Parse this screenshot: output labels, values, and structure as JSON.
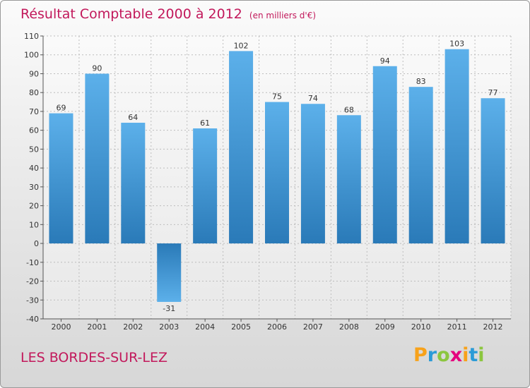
{
  "title": "Résultat Comptable 2000 à 2012",
  "unit_note": "(en milliers d'€)",
  "commune": "LES BORDES-SUR-LEZ",
  "logo": {
    "letters": [
      "P",
      "r",
      "o",
      "x",
      "i",
      "t",
      "i"
    ],
    "colors": [
      "#f7a21b",
      "#2b9bd7",
      "#8cc63f",
      "#e5007e",
      "#f7a21b",
      "#2b9bd7",
      "#8cc63f"
    ]
  },
  "colors": {
    "title": "#c2185b",
    "bar_top": "#5cb0ea",
    "bar_bottom": "#2a7ab8"
  },
  "chart_data": {
    "type": "bar",
    "title": "Résultat Comptable 2000 à 2012",
    "subtitle": "(en milliers d'€)",
    "categories": [
      "2000",
      "2001",
      "2002",
      "2003",
      "2004",
      "2005",
      "2006",
      "2007",
      "2008",
      "2009",
      "2010",
      "2011",
      "2012"
    ],
    "values": [
      69,
      90,
      64,
      -31,
      61,
      102,
      75,
      74,
      68,
      94,
      83,
      103,
      77
    ],
    "ylim": [
      -40,
      110
    ],
    "yticks": [
      110,
      100,
      90,
      80,
      70,
      60,
      50,
      40,
      30,
      20,
      10,
      0,
      -10,
      -20,
      -30,
      -40
    ],
    "xlabel": "",
    "ylabel": "",
    "grid": true
  }
}
